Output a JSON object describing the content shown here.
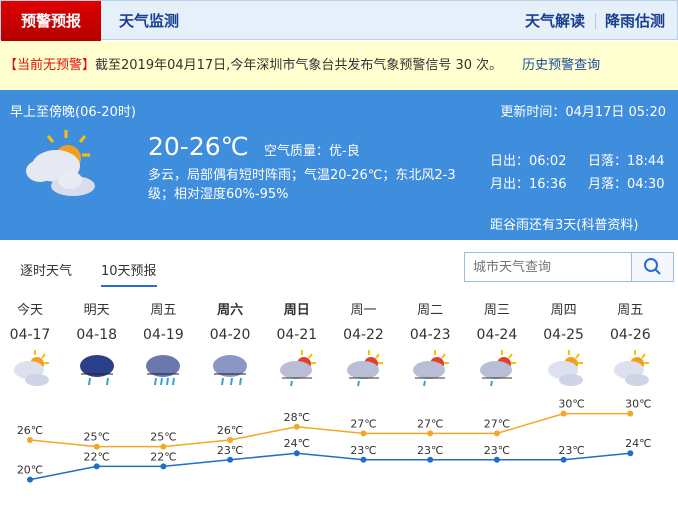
{
  "nav": {
    "active": "预警预报",
    "monitor": "天气监测",
    "interpret": "天气解读",
    "rain": "降雨估测"
  },
  "alert": {
    "status": "【当前无预警】",
    "text": "截至2019年04月17日,今年深圳市气象台共发布气象预警信号 30 次。",
    "history_link": "历史预警查询"
  },
  "current": {
    "period": "早上至傍晚(06-20时)",
    "updated": "更新时间：04月17日 05:20",
    "temp": "20-26℃",
    "air_label": "空气质量：优-良",
    "desc1": "多云，局部偶有短时阵雨；气温20-26℃；东北风2-3",
    "desc2": "级；相对湿度60%-95%",
    "sunrise": "日出：06:02",
    "sunset": "日落：18:44",
    "moonrise": "月出：16:36",
    "moonset": "月落：04:30",
    "solar_term": "距谷雨还有3天(科普资料)",
    "icon": "partly-cloudy-icon"
  },
  "tabs": {
    "hourly": "逐时天气",
    "ten_day": "10天预报"
  },
  "search": {
    "placeholder": "城市天气查询"
  },
  "days": [
    {
      "name": "今天",
      "date": "04-17",
      "icon": "partly-cloudy",
      "bold": false
    },
    {
      "name": "明天",
      "date": "04-18",
      "icon": "light-rain",
      "bold": false
    },
    {
      "name": "周五",
      "date": "04-19",
      "icon": "moderate-rain",
      "bold": false
    },
    {
      "name": "周六",
      "date": "04-20",
      "icon": "rain",
      "bold": true
    },
    {
      "name": "周日",
      "date": "04-21",
      "icon": "shower",
      "bold": true
    },
    {
      "name": "周一",
      "date": "04-22",
      "icon": "shower",
      "bold": false
    },
    {
      "name": "周二",
      "date": "04-23",
      "icon": "shower",
      "bold": false
    },
    {
      "name": "周三",
      "date": "04-24",
      "icon": "shower",
      "bold": false
    },
    {
      "name": "周四",
      "date": "04-25",
      "icon": "partly-cloudy",
      "bold": false
    },
    {
      "name": "周五",
      "date": "04-26",
      "icon": "partly-cloudy",
      "bold": false
    }
  ],
  "chart_data": {
    "type": "line",
    "categories": [
      "04-17",
      "04-18",
      "04-19",
      "04-20",
      "04-21",
      "04-22",
      "04-23",
      "04-24",
      "04-25",
      "04-26"
    ],
    "unit": "℃",
    "series": [
      {
        "values": [
          26,
          25,
          25,
          26,
          28,
          27,
          27,
          27,
          30,
          30
        ],
        "color": "#f5a623"
      },
      {
        "values": [
          20,
          22,
          22,
          23,
          24,
          23,
          23,
          23,
          23,
          24
        ],
        "color": "#1f6fc6"
      }
    ]
  }
}
